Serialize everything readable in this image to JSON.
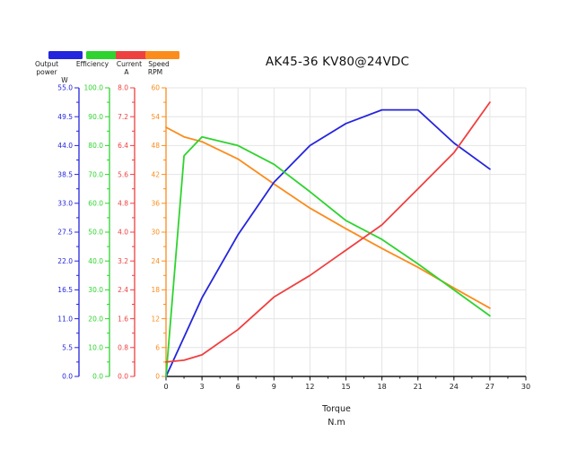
{
  "title": "AK45-36 KV80@24VDC",
  "chart_data": {
    "type": "line",
    "title": "AK45-36 KV80@24VDC",
    "grid": true,
    "legend_position": "top-left",
    "x_axis": {
      "label_line1": "Torque",
      "label_line2": "N.m",
      "min": 0,
      "max": 30,
      "major_step": 3,
      "minor_step": 1.5,
      "tick_labels": [
        "0",
        "3",
        "6",
        "9",
        "12",
        "15",
        "18",
        "21",
        "24",
        "27",
        "30"
      ]
    },
    "x": [
      0,
      1.5,
      3,
      6,
      9,
      12,
      15,
      18,
      21,
      24,
      27
    ],
    "series": [
      {
        "name": "Output power",
        "unit": "W",
        "color": "#2525dd",
        "axis_min": 0,
        "axis_max": 55,
        "axis_step": 5.5,
        "decimals": 1,
        "values": [
          0,
          7.5,
          15,
          27,
          37,
          44,
          48.2,
          50.8,
          50.8,
          44.5,
          39.5
        ]
      },
      {
        "name": "Efficiency",
        "unit": "",
        "color": "#2fd32f",
        "axis_min": 0,
        "axis_max": 100,
        "axis_step": 10,
        "decimals": 1,
        "values": [
          0,
          76.5,
          83,
          80,
          73.5,
          64,
          54,
          47.5,
          39,
          30,
          21
        ]
      },
      {
        "name": "Current",
        "unit": "A",
        "color": "#ef4040",
        "axis_min": 0,
        "axis_max": 8,
        "axis_step": 0.8,
        "decimals": 1,
        "values": [
          0.4,
          0.45,
          0.6,
          1.3,
          2.2,
          2.8,
          3.5,
          4.2,
          5.2,
          6.2,
          7.6
        ]
      },
      {
        "name": "Speed",
        "unit": "RPM",
        "color": "#fb8c1c",
        "axis_min": 0,
        "axis_max": 60,
        "axis_step": 6,
        "decimals": 0,
        "values": [
          51.8,
          49.8,
          48.8,
          45.2,
          40,
          35,
          30.7,
          26.6,
          22.7,
          18.4,
          14.2
        ]
      }
    ]
  },
  "colors": {
    "background": "#ffffff",
    "grid": "#e4e4e4",
    "x_axis": "#1a1a1a",
    "title_text": "#111111",
    "legend_text": "#1a1a1a"
  }
}
